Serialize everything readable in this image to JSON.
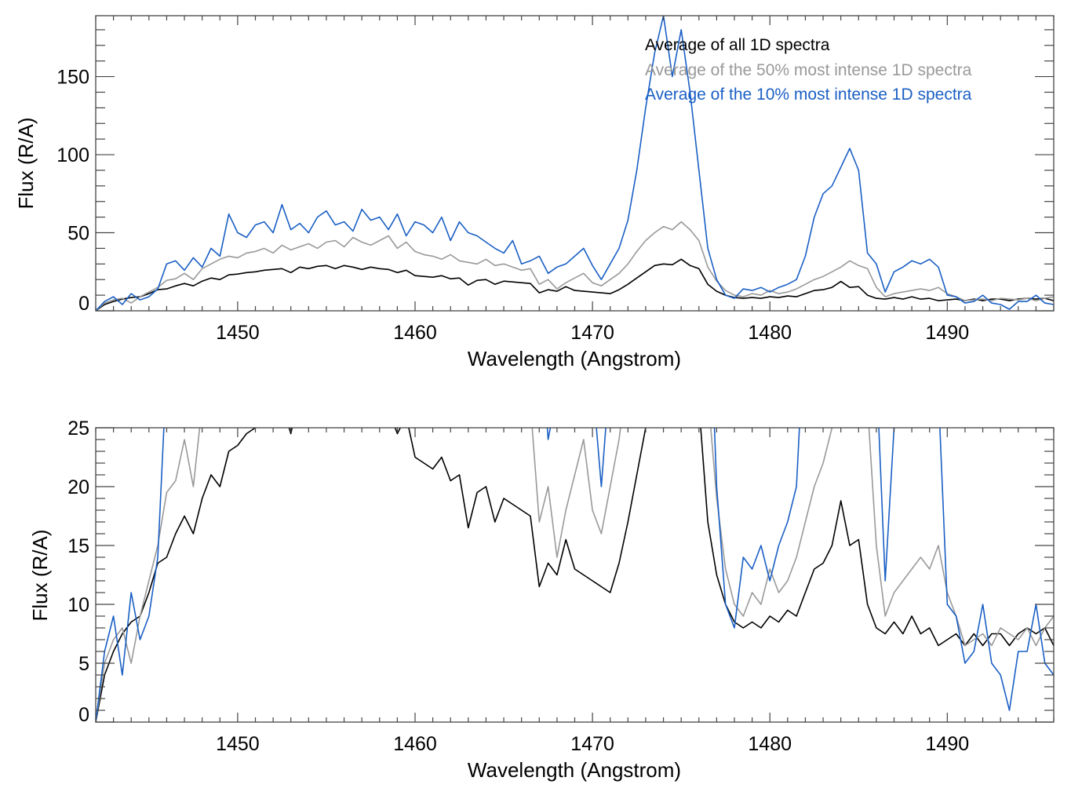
{
  "chart_data": [
    {
      "panel": "top",
      "type": "line",
      "title": "",
      "xlabel": "Wavelength (Angstrom)",
      "ylabel": "Flux (R/A)",
      "xlim": [
        1442,
        1496
      ],
      "ylim": [
        0,
        189
      ],
      "x_major_ticks": [
        1450,
        1460,
        1470,
        1480,
        1490
      ],
      "x_minor_step": 1,
      "y_major_ticks": [
        0,
        50,
        100,
        150
      ],
      "y_minor_step": 10,
      "grid": false,
      "legend_position": "top-right",
      "legend": [
        "Average of all 1D spectra",
        "Average of the 50% most intense 1D spectra",
        "Average of the 10% most intense 1D spectra"
      ]
    },
    {
      "panel": "bottom",
      "type": "line",
      "title": "",
      "xlabel": "Wavelength (Angstrom)",
      "ylabel": "Flux (R/A)",
      "xlim": [
        1442,
        1496
      ],
      "ylim": [
        0,
        25
      ],
      "x_major_ticks": [
        1450,
        1460,
        1470,
        1480,
        1490
      ],
      "x_minor_step": 1,
      "y_major_ticks": [
        0,
        5,
        10,
        15,
        20,
        25
      ],
      "y_minor_step": 1,
      "grid": false,
      "legend_position": "none"
    }
  ],
  "series": {
    "x_start": 1442,
    "x_step": 0.5,
    "lines": [
      {
        "name": "Average of all 1D spectra",
        "color": "#000000",
        "values": [
          0,
          4,
          6,
          7.5,
          8.5,
          9,
          11,
          13.5,
          14,
          16,
          17.5,
          16,
          19,
          21,
          20,
          23,
          23.5,
          24.5,
          25,
          26,
          26.5,
          27,
          24.5,
          28,
          27,
          28.5,
          29,
          27,
          29,
          28,
          26.5,
          28,
          27,
          26.5,
          24.5,
          26,
          22.5,
          22,
          21.5,
          22.5,
          20.5,
          21,
          16.5,
          19.5,
          20,
          17,
          19,
          18.5,
          18,
          17.5,
          11.5,
          13.5,
          12.5,
          15.5,
          13,
          12.5,
          12,
          11.5,
          11,
          13.5,
          17,
          21,
          25,
          29,
          30,
          29.5,
          33,
          29,
          27,
          17,
          12.5,
          10,
          8.5,
          8,
          8.5,
          8,
          9,
          8.5,
          9.5,
          9,
          11,
          13,
          13.5,
          15,
          18.8,
          15,
          15.5,
          10,
          8,
          7.5,
          8.5,
          7.5,
          9,
          7.5,
          8,
          6.5,
          7,
          7.5,
          6.5,
          7.5,
          6.5,
          7.5,
          7.5,
          6.5,
          7.5,
          8,
          7.5,
          8,
          6.5,
          7.5
        ]
      },
      {
        "name": "Average of the 50% most intense 1D spectra",
        "color": "#999999",
        "values": [
          0,
          5,
          7,
          8,
          5,
          9,
          12,
          15,
          19.5,
          20.5,
          24,
          20,
          27,
          30,
          33,
          35,
          34,
          37,
          38,
          40,
          37,
          42,
          39,
          41,
          43,
          40,
          44,
          45,
          41,
          47,
          44,
          42,
          45,
          48,
          40,
          44,
          38,
          36,
          35,
          33,
          36,
          32,
          31,
          30,
          33,
          29,
          30,
          28,
          26,
          27,
          17,
          20,
          14,
          18,
          21,
          24,
          18,
          16,
          20,
          24,
          30,
          38,
          45,
          50,
          54,
          52,
          57,
          52,
          45,
          28,
          19,
          13,
          10,
          9,
          11,
          10,
          13,
          11,
          12,
          14,
          17,
          20,
          22,
          25,
          28,
          32,
          29,
          27,
          15,
          9,
          11,
          12,
          13,
          14,
          13,
          15,
          11,
          9,
          6.5,
          7,
          7.5,
          6.5,
          8,
          7.5,
          7,
          8,
          6.5,
          8,
          9,
          7.5,
          8,
          7,
          9
        ]
      },
      {
        "name": "Average of the 10% most intense 1D spectra",
        "color": "#1a5fc4",
        "values": [
          0,
          6,
          9,
          4,
          11,
          7,
          9,
          14,
          30,
          32,
          26,
          34,
          28,
          40,
          35,
          62,
          50,
          47,
          55,
          57,
          50,
          68,
          52,
          56,
          50,
          60,
          64,
          55,
          57,
          51,
          65,
          58,
          60,
          52,
          62,
          48,
          57,
          55,
          50,
          60,
          45,
          57,
          50,
          48,
          44,
          40,
          37,
          45,
          30,
          32,
          35,
          24,
          28,
          30,
          35,
          40,
          29,
          20,
          30,
          40,
          58,
          90,
          130,
          165,
          189,
          150,
          180,
          140,
          90,
          40,
          20,
          10,
          8,
          14,
          13,
          15,
          12,
          15,
          17,
          20,
          35,
          60,
          75,
          80,
          92,
          104,
          90,
          37,
          30,
          12,
          25,
          28,
          32,
          30,
          33,
          28,
          10,
          9,
          5,
          6,
          10,
          5,
          4,
          1,
          6,
          6,
          10,
          5,
          4,
          5,
          6,
          9,
          5
        ]
      }
    ]
  },
  "labels": {
    "top_ylabel": "Flux (R/A)",
    "top_xlabel": "Wavelength (Angstrom)",
    "bottom_ylabel": "Flux (R/A)",
    "bottom_xlabel": "Wavelength (Angstrom)",
    "legend": [
      "Average of all 1D spectra",
      "Average of the 50% most intense 1D spectra",
      "Average of the 10% most intense 1D spectra"
    ]
  }
}
